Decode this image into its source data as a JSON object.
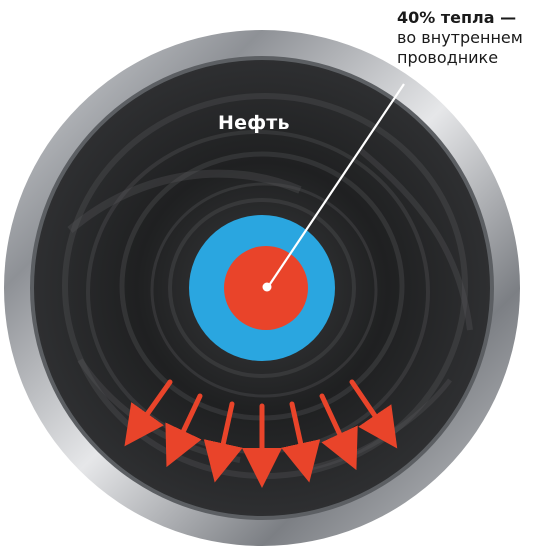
{
  "callout": {
    "title": "40% тепла —",
    "line1": "во внутреннем",
    "line2": "проводнике"
  },
  "medium_label": "Нефть",
  "colors": {
    "pipe_steel": "#9a9da2",
    "oil": "#262728",
    "insulation": "#2aa6e0",
    "conductor": "#e9442a",
    "arrow": "#e9442a",
    "leader": "#ffffff"
  },
  "heat_arrows_count": 7
}
